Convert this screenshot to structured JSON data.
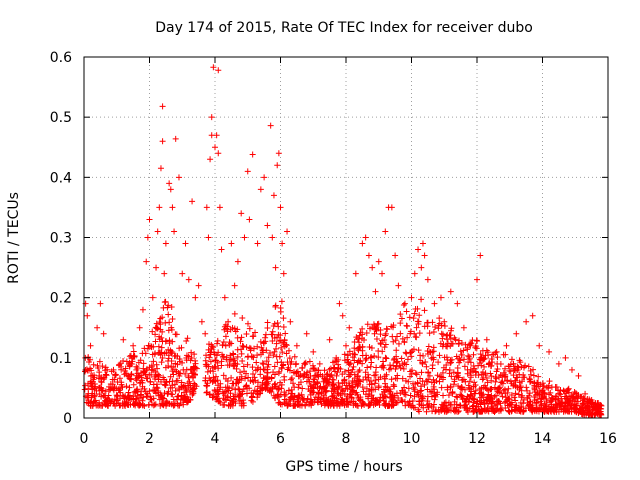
{
  "chart_data": {
    "type": "scatter",
    "title": "Day 174 of 2015, Rate Of TEC Index for receiver dubo",
    "xlabel": "GPS time / hours",
    "ylabel": "ROTI / TECUs",
    "xlim": [
      0,
      16
    ],
    "ylim": [
      0,
      0.6
    ],
    "xticks": [
      0,
      2,
      4,
      6,
      8,
      10,
      12,
      14,
      16
    ],
    "xtick_labels": [
      "0",
      "2",
      "4",
      "6",
      "8",
      "10",
      "12",
      "14",
      "16"
    ],
    "yticks": [
      0,
      0.1,
      0.2,
      0.3,
      0.4,
      0.5,
      0.6
    ],
    "ytick_labels": [
      "0",
      "0.1",
      "0.2",
      "0.3",
      "0.4",
      "0.5",
      "0.6"
    ],
    "grid": true,
    "marker": "+",
    "color": "#ff0000",
    "series": [
      {
        "name": "ROTI",
        "points": [
          [
            0.05,
            0.19
          ],
          [
            0.1,
            0.17
          ],
          [
            0.2,
            0.12
          ],
          [
            0.4,
            0.15
          ],
          [
            0.5,
            0.19
          ],
          [
            0.6,
            0.14
          ],
          [
            0.9,
            0.08
          ],
          [
            1.2,
            0.13
          ],
          [
            1.5,
            0.12
          ],
          [
            1.7,
            0.15
          ],
          [
            1.8,
            0.18
          ],
          [
            1.9,
            0.26
          ],
          [
            2.0,
            0.33
          ],
          [
            1.95,
            0.3
          ],
          [
            2.1,
            0.2
          ],
          [
            2.2,
            0.25
          ],
          [
            2.25,
            0.31
          ],
          [
            2.3,
            0.35
          ],
          [
            2.35,
            0.415
          ],
          [
            2.4,
            0.46
          ],
          [
            2.4,
            0.518
          ],
          [
            2.45,
            0.24
          ],
          [
            2.5,
            0.29
          ],
          [
            2.6,
            0.39
          ],
          [
            2.65,
            0.38
          ],
          [
            2.7,
            0.35
          ],
          [
            2.75,
            0.31
          ],
          [
            2.8,
            0.464
          ],
          [
            2.9,
            0.4
          ],
          [
            3.0,
            0.24
          ],
          [
            3.1,
            0.29
          ],
          [
            3.2,
            0.23
          ],
          [
            3.3,
            0.36
          ],
          [
            3.4,
            0.2
          ],
          [
            3.5,
            0.22
          ],
          [
            3.6,
            0.16
          ],
          [
            3.7,
            0.14
          ],
          [
            3.75,
            0.35
          ],
          [
            3.8,
            0.3
          ],
          [
            3.85,
            0.43
          ],
          [
            3.9,
            0.47
          ],
          [
            3.9,
            0.5
          ],
          [
            3.95,
            0.583
          ],
          [
            4.1,
            0.578
          ],
          [
            4.0,
            0.45
          ],
          [
            4.05,
            0.47
          ],
          [
            4.1,
            0.44
          ],
          [
            4.15,
            0.35
          ],
          [
            4.2,
            0.28
          ],
          [
            4.3,
            0.2
          ],
          [
            4.4,
            0.16
          ],
          [
            4.5,
            0.29
          ],
          [
            4.6,
            0.22
          ],
          [
            4.7,
            0.26
          ],
          [
            4.8,
            0.34
          ],
          [
            4.9,
            0.3
          ],
          [
            5.0,
            0.41
          ],
          [
            5.05,
            0.33
          ],
          [
            5.15,
            0.438
          ],
          [
            5.3,
            0.29
          ],
          [
            5.4,
            0.38
          ],
          [
            5.5,
            0.4
          ],
          [
            5.6,
            0.32
          ],
          [
            5.7,
            0.486
          ],
          [
            5.75,
            0.3
          ],
          [
            5.8,
            0.37
          ],
          [
            5.85,
            0.25
          ],
          [
            5.9,
            0.42
          ],
          [
            5.95,
            0.44
          ],
          [
            6.0,
            0.35
          ],
          [
            6.05,
            0.29
          ],
          [
            6.1,
            0.24
          ],
          [
            6.2,
            0.31
          ],
          [
            6.3,
            0.16
          ],
          [
            6.5,
            0.12
          ],
          [
            6.8,
            0.14
          ],
          [
            7.0,
            0.11
          ],
          [
            7.2,
            0.09
          ],
          [
            7.5,
            0.13
          ],
          [
            7.7,
            0.1
          ],
          [
            7.8,
            0.19
          ],
          [
            7.9,
            0.17
          ],
          [
            8.0,
            0.12
          ],
          [
            8.1,
            0.15
          ],
          [
            8.3,
            0.24
          ],
          [
            8.5,
            0.29
          ],
          [
            8.6,
            0.3
          ],
          [
            8.7,
            0.27
          ],
          [
            8.8,
            0.25
          ],
          [
            8.9,
            0.21
          ],
          [
            9.0,
            0.26
          ],
          [
            9.1,
            0.24
          ],
          [
            9.2,
            0.31
          ],
          [
            9.3,
            0.35
          ],
          [
            9.4,
            0.35
          ],
          [
            9.5,
            0.27
          ],
          [
            9.6,
            0.22
          ],
          [
            9.8,
            0.19
          ],
          [
            10.0,
            0.2
          ],
          [
            10.1,
            0.24
          ],
          [
            10.2,
            0.28
          ],
          [
            10.3,
            0.25
          ],
          [
            10.35,
            0.29
          ],
          [
            10.4,
            0.27
          ],
          [
            10.5,
            0.23
          ],
          [
            10.7,
            0.19
          ],
          [
            10.9,
            0.2
          ],
          [
            11.0,
            0.16
          ],
          [
            11.2,
            0.21
          ],
          [
            11.4,
            0.19
          ],
          [
            11.6,
            0.15
          ],
          [
            11.8,
            0.12
          ],
          [
            12.0,
            0.23
          ],
          [
            12.1,
            0.27
          ],
          [
            12.3,
            0.13
          ],
          [
            12.6,
            0.11
          ],
          [
            12.9,
            0.12
          ],
          [
            13.2,
            0.14
          ],
          [
            13.5,
            0.16
          ],
          [
            13.7,
            0.17
          ],
          [
            13.9,
            0.12
          ],
          [
            14.2,
            0.11
          ],
          [
            14.5,
            0.09
          ],
          [
            14.7,
            0.1
          ],
          [
            14.9,
            0.08
          ],
          [
            15.1,
            0.07
          ],
          [
            15.3,
            0.04
          ],
          [
            15.5,
            0.03
          ],
          [
            15.7,
            0.025
          ]
        ]
      }
    ],
    "envelope": {
      "x": [
        0,
        0.25,
        0.5,
        0.75,
        1,
        1.25,
        1.5,
        1.75,
        2,
        2.25,
        2.5,
        2.75,
        3,
        3.25,
        3.5,
        3.75,
        4,
        4.25,
        4.5,
        4.75,
        5,
        5.25,
        5.5,
        5.75,
        6,
        6.25,
        6.5,
        6.75,
        7,
        7.25,
        7.5,
        7.75,
        8,
        8.25,
        8.5,
        8.75,
        9,
        9.25,
        9.5,
        9.75,
        10,
        10.25,
        10.5,
        10.75,
        11,
        11.25,
        11.5,
        11.75,
        12,
        12.25,
        12.5,
        12.75,
        13,
        13.25,
        13.5,
        13.75,
        14,
        14.25,
        14.5,
        14.75,
        15,
        15.25,
        15.5,
        15.75
      ],
      "low": [
        0.02,
        0.02,
        0.02,
        0.02,
        0.02,
        0.02,
        0.02,
        0.02,
        0.02,
        0.02,
        0.02,
        0.02,
        0.02,
        0.03,
        0.06,
        0.04,
        0.03,
        0.02,
        0.02,
        0.02,
        0.02,
        0.03,
        0.05,
        0.04,
        0.02,
        0.02,
        0.02,
        0.02,
        0.02,
        0.02,
        0.02,
        0.02,
        0.02,
        0.02,
        0.02,
        0.02,
        0.02,
        0.02,
        0.02,
        0.02,
        0.02,
        0.01,
        0.01,
        0.01,
        0.01,
        0.01,
        0.01,
        0.01,
        0.01,
        0.01,
        0.01,
        0.01,
        0.01,
        0.01,
        0.01,
        0.01,
        0.01,
        0.01,
        0.01,
        0.01,
        0.01,
        0.005,
        0.005,
        0.005
      ],
      "high": [
        0.12,
        0.1,
        0.1,
        0.08,
        0.09,
        0.1,
        0.11,
        0.12,
        0.14,
        0.16,
        0.2,
        0.18,
        0.16,
        0.12,
        0.1,
        0.14,
        0.12,
        0.16,
        0.18,
        0.17,
        0.16,
        0.14,
        0.13,
        0.2,
        0.22,
        0.12,
        0.1,
        0.1,
        0.09,
        0.08,
        0.09,
        0.1,
        0.11,
        0.13,
        0.15,
        0.17,
        0.16,
        0.15,
        0.17,
        0.19,
        0.18,
        0.2,
        0.19,
        0.17,
        0.16,
        0.15,
        0.14,
        0.14,
        0.13,
        0.12,
        0.11,
        0.11,
        0.1,
        0.1,
        0.09,
        0.08,
        0.07,
        0.06,
        0.05,
        0.05,
        0.045,
        0.035,
        0.03,
        0.025
      ],
      "window": [
        0.02,
        15.8
      ],
      "gaps": [
        [
          3.45,
          3.7
        ]
      ]
    }
  }
}
